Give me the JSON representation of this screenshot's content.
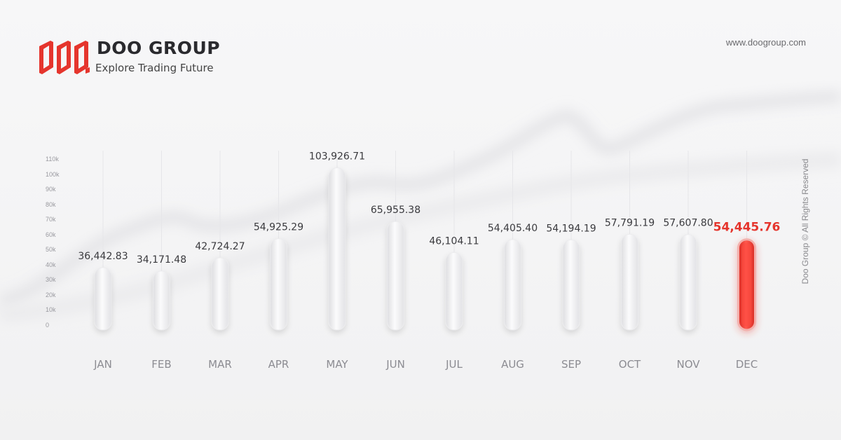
{
  "brand": {
    "name": "DOO GROUP",
    "tagline": "Explore Trading Future",
    "website": "www.doogroup.com",
    "rights": "Doo Group © All Rights Reserved",
    "accent_color": "#e5352d",
    "logo_icon": "doo-logo-icon"
  },
  "chart_data": {
    "type": "bar",
    "categories": [
      "JAN",
      "FEB",
      "MAR",
      "APR",
      "MAY",
      "JUN",
      "JUL",
      "AUG",
      "SEP",
      "OCT",
      "NOV",
      "DEC"
    ],
    "values": [
      36442.83,
      34171.48,
      42724.27,
      54925.29,
      103926.71,
      65955.38,
      46104.11,
      54405.4,
      54194.19,
      57791.19,
      57607.8,
      54445.76
    ],
    "value_labels": [
      "36,442.83",
      "34,171.48",
      "42,724.27",
      "54,925.29",
      "103,926.71",
      "65,955.38",
      "46,104.11",
      "54,405.40",
      "54,194.19",
      "57,791.19",
      "57,607.80",
      "54,445.76"
    ],
    "highlight_index": 11,
    "ylim": [
      0,
      110000
    ],
    "yticks": [
      "0",
      "10k",
      "20k",
      "30k",
      "40k",
      "50k",
      "60k",
      "70k",
      "80k",
      "90k",
      "100k",
      "110k"
    ],
    "grid": true,
    "xlabel": "",
    "ylabel": "",
    "title": ""
  }
}
